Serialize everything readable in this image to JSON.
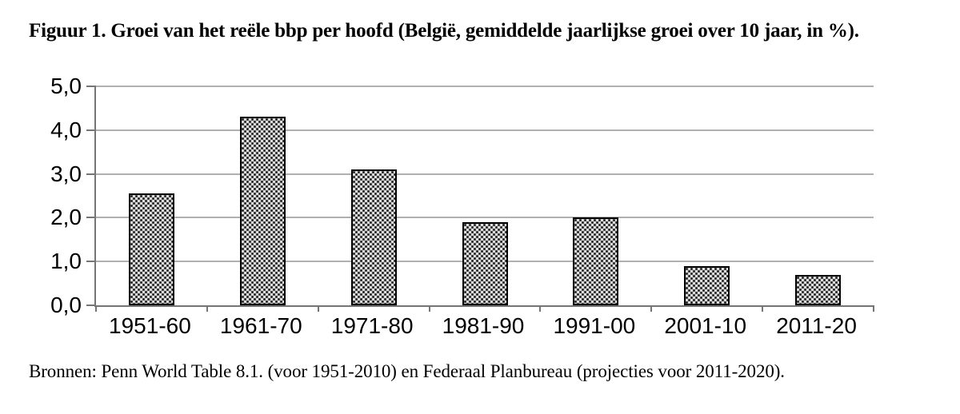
{
  "figure": {
    "title": "Figuur 1. Groei van het reële bbp per hoofd (België, gemiddelde jaarlijkse groei over 10 jaar, in %).",
    "source": "Bronnen: Penn World Table 8.1. (voor 1951-2010) en Federaal Planbureau (projecties voor 2011-2020)."
  },
  "chart_data": {
    "type": "bar",
    "title": "Figuur 1. Groei van het reële bbp per hoofd (België, gemiddelde jaarlijkse groei over 10 jaar, in %).",
    "categories": [
      "1951-60",
      "1961-70",
      "1971-80",
      "1981-90",
      "1991-00",
      "2001-10",
      "2011-20"
    ],
    "values": [
      2.55,
      4.3,
      3.1,
      1.9,
      2.0,
      0.9,
      0.7
    ],
    "xlabel": "",
    "ylabel": "",
    "ylim": [
      0,
      5
    ],
    "yticks": [
      {
        "value": 0,
        "label": "0,0"
      },
      {
        "value": 1,
        "label": "1,0"
      },
      {
        "value": 2,
        "label": "2,0"
      },
      {
        "value": 3,
        "label": "3,0"
      },
      {
        "value": 4,
        "label": "4,0"
      },
      {
        "value": 5,
        "label": "5,0"
      }
    ],
    "grid": true,
    "legend": "none",
    "annotation": "Bronnen: Penn World Table 8.1. (voor 1951-2010) en Federaal Planbureau (projecties voor 2011-2020).",
    "style": {
      "axis_color": "#757575",
      "gridline_color": "#b0b0b0",
      "bar_border_color": "#000000",
      "bar_fill_base": "#9e9e9e",
      "bar_fill_pattern": "dotted-checker-black-white",
      "text_color": "#000000"
    }
  }
}
